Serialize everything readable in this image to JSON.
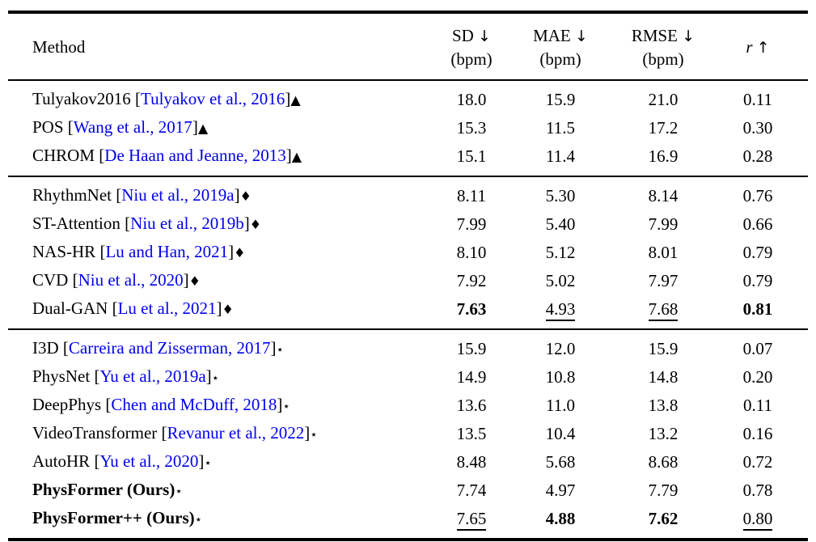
{
  "colors": {
    "citation_blue": "#0000ee",
    "text": "#000000",
    "rule": "#000000"
  },
  "header": {
    "method_label": "Method",
    "columns": [
      {
        "label": "SD",
        "arrow": "↓",
        "unit": "(bpm)",
        "italic": false
      },
      {
        "label": "MAE",
        "arrow": "↓",
        "unit": "(bpm)",
        "italic": false
      },
      {
        "label": "RMSE",
        "arrow": "↓",
        "unit": "(bpm)",
        "italic": false
      },
      {
        "label": "r",
        "arrow": "↑",
        "unit": "",
        "italic": true
      }
    ]
  },
  "sections": [
    {
      "marker": "▲",
      "marker_icon": "triangle-marker-icon",
      "marker_class": "marker-triangle",
      "rows": [
        {
          "name": "Tulyakov2016",
          "bold": false,
          "citation": "Tulyakov et al., 2016",
          "values": [
            {
              "v": "18.0",
              "s": ""
            },
            {
              "v": "15.9",
              "s": ""
            },
            {
              "v": "21.0",
              "s": ""
            },
            {
              "v": "0.11",
              "s": ""
            }
          ]
        },
        {
          "name": "POS",
          "bold": false,
          "citation": "Wang et al., 2017",
          "values": [
            {
              "v": "15.3",
              "s": ""
            },
            {
              "v": "11.5",
              "s": ""
            },
            {
              "v": "17.2",
              "s": ""
            },
            {
              "v": "0.30",
              "s": ""
            }
          ]
        },
        {
          "name": "CHROM",
          "bold": false,
          "citation": "De Haan and Jeanne, 2013",
          "values": [
            {
              "v": "15.1",
              "s": ""
            },
            {
              "v": "11.4",
              "s": ""
            },
            {
              "v": "16.9",
              "s": ""
            },
            {
              "v": "0.28",
              "s": ""
            }
          ]
        }
      ]
    },
    {
      "marker": "♦",
      "marker_icon": "diamond-marker-icon",
      "marker_class": "marker-diamond",
      "rows": [
        {
          "name": "RhythmNet",
          "bold": false,
          "citation": "Niu et al., 2019a",
          "values": [
            {
              "v": "8.11",
              "s": ""
            },
            {
              "v": "5.30",
              "s": ""
            },
            {
              "v": "8.14",
              "s": ""
            },
            {
              "v": "0.76",
              "s": ""
            }
          ]
        },
        {
          "name": "ST-Attention",
          "bold": false,
          "citation": "Niu et al., 2019b",
          "values": [
            {
              "v": "7.99",
              "s": ""
            },
            {
              "v": "5.40",
              "s": ""
            },
            {
              "v": "7.99",
              "s": ""
            },
            {
              "v": "0.66",
              "s": ""
            }
          ]
        },
        {
          "name": "NAS-HR",
          "bold": false,
          "citation": "Lu and Han, 2021",
          "values": [
            {
              "v": "8.10",
              "s": ""
            },
            {
              "v": "5.12",
              "s": ""
            },
            {
              "v": "8.01",
              "s": ""
            },
            {
              "v": "0.79",
              "s": ""
            }
          ]
        },
        {
          "name": "CVD",
          "bold": false,
          "citation": "Niu et al., 2020",
          "values": [
            {
              "v": "7.92",
              "s": ""
            },
            {
              "v": "5.02",
              "s": ""
            },
            {
              "v": "7.97",
              "s": ""
            },
            {
              "v": "0.79",
              "s": ""
            }
          ]
        },
        {
          "name": "Dual-GAN",
          "bold": false,
          "citation": "Lu et al., 2021",
          "values": [
            {
              "v": "7.63",
              "s": "b"
            },
            {
              "v": "4.93",
              "s": "u"
            },
            {
              "v": "7.68",
              "s": "u"
            },
            {
              "v": "0.81",
              "s": "b"
            }
          ]
        }
      ]
    },
    {
      "marker": "⋆",
      "marker_icon": "star-marker-icon",
      "marker_class": "marker-star",
      "rows": [
        {
          "name": "I3D",
          "bold": false,
          "citation": "Carreira and Zisserman, 2017",
          "values": [
            {
              "v": "15.9",
              "s": ""
            },
            {
              "v": "12.0",
              "s": ""
            },
            {
              "v": "15.9",
              "s": ""
            },
            {
              "v": "0.07",
              "s": ""
            }
          ]
        },
        {
          "name": "PhysNet",
          "bold": false,
          "citation": "Yu et al., 2019a",
          "values": [
            {
              "v": "14.9",
              "s": ""
            },
            {
              "v": "10.8",
              "s": ""
            },
            {
              "v": "14.8",
              "s": ""
            },
            {
              "v": "0.20",
              "s": ""
            }
          ]
        },
        {
          "name": "DeepPhys",
          "bold": false,
          "citation": "Chen and McDuff, 2018",
          "values": [
            {
              "v": "13.6",
              "s": ""
            },
            {
              "v": "11.0",
              "s": ""
            },
            {
              "v": "13.8",
              "s": ""
            },
            {
              "v": "0.11",
              "s": ""
            }
          ]
        },
        {
          "name": "VideoTransformer",
          "bold": false,
          "citation": "Revanur et al., 2022",
          "values": [
            {
              "v": "13.5",
              "s": ""
            },
            {
              "v": "10.4",
              "s": ""
            },
            {
              "v": "13.2",
              "s": ""
            },
            {
              "v": "0.16",
              "s": ""
            }
          ]
        },
        {
          "name": "AutoHR",
          "bold": false,
          "citation": "Yu et al., 2020",
          "values": [
            {
              "v": "8.48",
              "s": ""
            },
            {
              "v": "5.68",
              "s": ""
            },
            {
              "v": "8.68",
              "s": ""
            },
            {
              "v": "0.72",
              "s": ""
            }
          ]
        },
        {
          "name": "PhysFormer (Ours)",
          "bold": true,
          "citation": null,
          "values": [
            {
              "v": "7.74",
              "s": ""
            },
            {
              "v": "4.97",
              "s": ""
            },
            {
              "v": "7.79",
              "s": ""
            },
            {
              "v": "0.78",
              "s": ""
            }
          ]
        },
        {
          "name": "PhysFormer++ (Ours)",
          "bold": true,
          "citation": null,
          "values": [
            {
              "v": "7.65",
              "s": "u"
            },
            {
              "v": "4.88",
              "s": "b"
            },
            {
              "v": "7.62",
              "s": "b"
            },
            {
              "v": "0.80",
              "s": "u"
            }
          ]
        }
      ]
    }
  ]
}
